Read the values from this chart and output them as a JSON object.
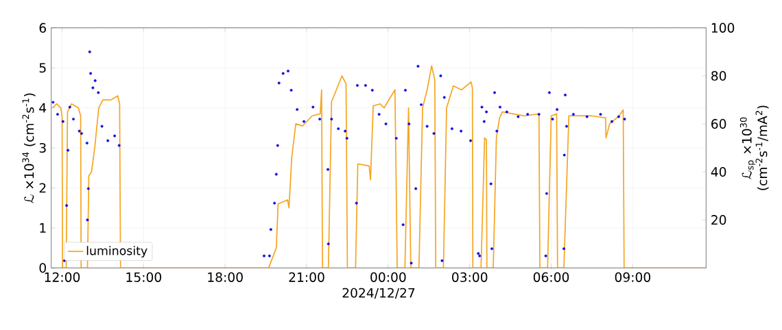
{
  "chart_data": {
    "type": "line",
    "xlabel": "2024/12/27",
    "ylabel": "ℒ ×10$^{34}$ (cm$^{-2}$s$^{-1}$)",
    "y2label": "ℒ$_{sp}$ ×10$^{30}$ (cm$^{-2}$s$^{-1}$/mA$^{2}$)",
    "xlim": [
      "2024-12-26T11:36",
      "2024-12-27T11:42"
    ],
    "xticks": [
      {
        "value": "2024-12-26T12:00",
        "label": "12:00"
      },
      {
        "value": "2024-12-26T15:00",
        "label": "15:00"
      },
      {
        "value": "2024-12-26T18:00",
        "label": "18:00"
      },
      {
        "value": "2024-12-26T21:00",
        "label": "21:00"
      },
      {
        "value": "2024-12-27T00:00",
        "label": "00:00"
      },
      {
        "value": "2024-12-27T03:00",
        "label": "03:00"
      },
      {
        "value": "2024-12-27T06:00",
        "label": "06:00"
      },
      {
        "value": "2024-12-27T09:00",
        "label": "09:00"
      }
    ],
    "ylim": [
      0,
      6
    ],
    "yticks": [
      0,
      1,
      2,
      3,
      4,
      5,
      6
    ],
    "y2lim": [
      0,
      100
    ],
    "y2ticks": [
      20,
      40,
      60,
      80,
      100
    ],
    "grid": true,
    "legend": "bottom left",
    "series": [
      {
        "name": "luminosity",
        "color": "#f5a623",
        "marker": "none",
        "line_style": "solid",
        "x": [
          "2024-12-26T11:39",
          "2024-12-26T11:48",
          "2024-12-26T11:57",
          "2024-12-26T12:00",
          "2024-12-26T12:01",
          "2024-12-26T12:09",
          "2024-12-26T12:12",
          "2024-12-26T12:21",
          "2024-12-26T12:36",
          "2024-12-26T12:41",
          "2024-12-26T12:42",
          "2024-12-26T12:56",
          "2024-12-26T12:59",
          "2024-12-26T13:05",
          "2024-12-26T13:12",
          "2024-12-26T13:21",
          "2024-12-26T13:30",
          "2024-12-26T13:48",
          "2024-12-26T14:03",
          "2024-12-26T14:07",
          "2024-12-26T14:09",
          "2024-12-26T19:36",
          "2024-12-26T19:53",
          "2024-12-26T19:57",
          "2024-12-26T20:18",
          "2024-12-26T20:21",
          "2024-12-26T20:27",
          "2024-12-26T20:36",
          "2024-12-26T20:51",
          "2024-12-26T21:12",
          "2024-12-26T21:30",
          "2024-12-26T21:33",
          "2024-12-26T21:35",
          "2024-12-26T21:48",
          "2024-12-26T21:55",
          "2024-12-26T22:18",
          "2024-12-26T22:27",
          "2024-12-26T22:30",
          "2024-12-26T22:48",
          "2024-12-26T22:53",
          "2024-12-26T23:18",
          "2024-12-26T23:21",
          "2024-12-26T23:27",
          "2024-12-26T23:42",
          "2024-12-26T23:51",
          "2024-12-27T00:15",
          "2024-12-27T00:20",
          "2024-12-27T00:37",
          "2024-12-27T00:45",
          "2024-12-27T00:50",
          "2024-12-27T01:08",
          "2024-12-27T01:16",
          "2024-12-27T01:26",
          "2024-12-27T01:36",
          "2024-12-27T01:43",
          "2024-12-27T01:45",
          "2024-12-27T02:02",
          "2024-12-27T02:09",
          "2024-12-27T02:24",
          "2024-12-27T02:42",
          "2024-12-27T03:03",
          "2024-12-27T03:06",
          "2024-12-27T03:07",
          "2024-12-27T03:25",
          "2024-12-27T03:33",
          "2024-12-27T03:37",
          "2024-12-27T03:38",
          "2024-12-27T03:52",
          "2024-12-27T03:59",
          "2024-12-27T04:06",
          "2024-12-27T04:12",
          "2024-12-27T05:00",
          "2024-12-27T05:33",
          "2024-12-27T05:35",
          "2024-12-27T05:52",
          "2024-12-27T06:00",
          "2024-12-27T06:12",
          "2024-12-27T06:14",
          "2024-12-27T06:28",
          "2024-12-27T06:39",
          "2024-12-27T07:30",
          "2024-12-27T08:00",
          "2024-12-27T08:01",
          "2024-12-27T08:09",
          "2024-12-27T08:30",
          "2024-12-27T08:39",
          "2024-12-27T08:41",
          "2024-12-27T11:42"
        ],
        "values": [
          4.0,
          4.1,
          4.0,
          3.8,
          0,
          0,
          3.9,
          4.1,
          4.0,
          3.8,
          0,
          0,
          2.3,
          2.4,
          3.0,
          4.0,
          4.2,
          4.2,
          4.3,
          4.1,
          0,
          0,
          0.5,
          1.6,
          1.7,
          1.5,
          2.75,
          3.6,
          3.55,
          3.8,
          3.85,
          4.45,
          0,
          0,
          4.15,
          4.8,
          4.6,
          0,
          0,
          2.6,
          2.55,
          2.2,
          4.05,
          4.1,
          4.0,
          4.45,
          0,
          0,
          4.0,
          0,
          0,
          4.0,
          4.45,
          5.05,
          4.7,
          0,
          0,
          4.0,
          4.55,
          4.45,
          4.65,
          4.5,
          0,
          0,
          3.25,
          3.2,
          0,
          0,
          3.25,
          3.75,
          3.9,
          3.8,
          3.85,
          0,
          0,
          3.8,
          3.85,
          0,
          0,
          3.8,
          3.8,
          3.75,
          3.25,
          3.6,
          3.8,
          3.95,
          0,
          0
        ]
      },
      {
        "type": "scatter",
        "axis": "y2",
        "color": "#1010e0",
        "marker": "circle",
        "x": [
          "2024-12-26T11:40",
          "2024-12-26T11:50",
          "2024-12-26T12:02",
          "2024-12-26T12:05",
          "2024-12-26T12:10",
          "2024-12-26T12:13",
          "2024-12-26T12:17",
          "2024-12-26T12:25",
          "2024-12-26T12:38",
          "2024-12-26T12:43",
          "2024-12-26T12:55",
          "2024-12-26T12:56",
          "2024-12-26T12:58",
          "2024-12-26T13:01",
          "2024-12-26T13:03",
          "2024-12-26T13:08",
          "2024-12-26T13:13",
          "2024-12-26T13:20",
          "2024-12-26T13:28",
          "2024-12-26T13:41",
          "2024-12-26T13:56",
          "2024-12-26T14:06",
          "2024-12-26T19:26",
          "2024-12-26T19:38",
          "2024-12-26T19:41",
          "2024-12-26T19:49",
          "2024-12-26T19:53",
          "2024-12-26T19:56",
          "2024-12-26T19:59",
          "2024-12-26T20:08",
          "2024-12-26T20:19",
          "2024-12-26T20:26",
          "2024-12-26T20:39",
          "2024-12-26T20:54",
          "2024-12-26T21:14",
          "2024-12-26T21:29",
          "2024-12-26T21:47",
          "2024-12-26T21:48",
          "2024-12-26T21:55",
          "2024-12-26T22:10",
          "2024-12-26T22:25",
          "2024-12-26T22:29",
          "2024-12-26T22:50",
          "2024-12-26T22:52",
          "2024-12-26T23:10",
          "2024-12-26T23:25",
          "2024-12-26T23:40",
          "2024-12-26T23:55",
          "2024-12-27T00:18",
          "2024-12-27T00:33",
          "2024-12-27T00:38",
          "2024-12-27T00:46",
          "2024-12-27T00:51",
          "2024-12-27T01:01",
          "2024-12-27T01:06",
          "2024-12-27T01:13",
          "2024-12-27T01:26",
          "2024-12-27T01:41",
          "2024-12-27T01:56",
          "2024-12-27T01:59",
          "2024-12-27T02:04",
          "2024-12-27T02:21",
          "2024-12-27T02:41",
          "2024-12-27T03:02",
          "2024-12-27T03:19",
          "2024-12-27T03:22",
          "2024-12-27T03:27",
          "2024-12-27T03:32",
          "2024-12-27T03:37",
          "2024-12-27T03:47",
          "2024-12-27T03:49",
          "2024-12-27T03:55",
          "2024-12-27T04:00",
          "2024-12-27T04:07",
          "2024-12-27T04:22",
          "2024-12-27T04:47",
          "2024-12-27T05:08",
          "2024-12-27T05:33",
          "2024-12-27T05:48",
          "2024-12-27T05:50",
          "2024-12-27T05:56",
          "2024-12-27T06:03",
          "2024-12-27T06:13",
          "2024-12-27T06:28",
          "2024-12-27T06:29",
          "2024-12-27T06:31",
          "2024-12-27T06:34",
          "2024-12-27T06:49",
          "2024-12-27T07:19",
          "2024-12-27T07:49",
          "2024-12-27T08:14",
          "2024-12-27T08:29",
          "2024-12-27T08:42"
        ],
        "values": [
          69,
          64,
          61,
          3,
          26,
          49,
          67,
          62,
          57,
          56,
          52,
          20,
          33,
          90,
          81,
          75,
          78,
          73,
          59,
          53,
          55,
          51,
          5,
          5,
          16,
          27,
          39,
          51,
          77,
          81,
          82,
          74,
          66,
          61,
          67,
          62,
          41,
          10,
          62,
          58,
          57,
          54,
          27,
          76,
          76,
          74,
          64,
          60,
          54,
          18,
          74,
          60,
          2,
          33,
          84,
          68,
          59,
          56,
          80,
          3,
          71,
          58,
          57,
          53,
          6,
          5,
          67,
          61,
          65,
          35,
          8,
          73,
          57,
          67,
          65,
          63,
          64,
          64,
          5,
          31,
          73,
          62,
          66,
          8,
          47,
          72,
          59,
          64,
          63,
          64,
          61,
          63,
          62
        ]
      }
    ]
  }
}
